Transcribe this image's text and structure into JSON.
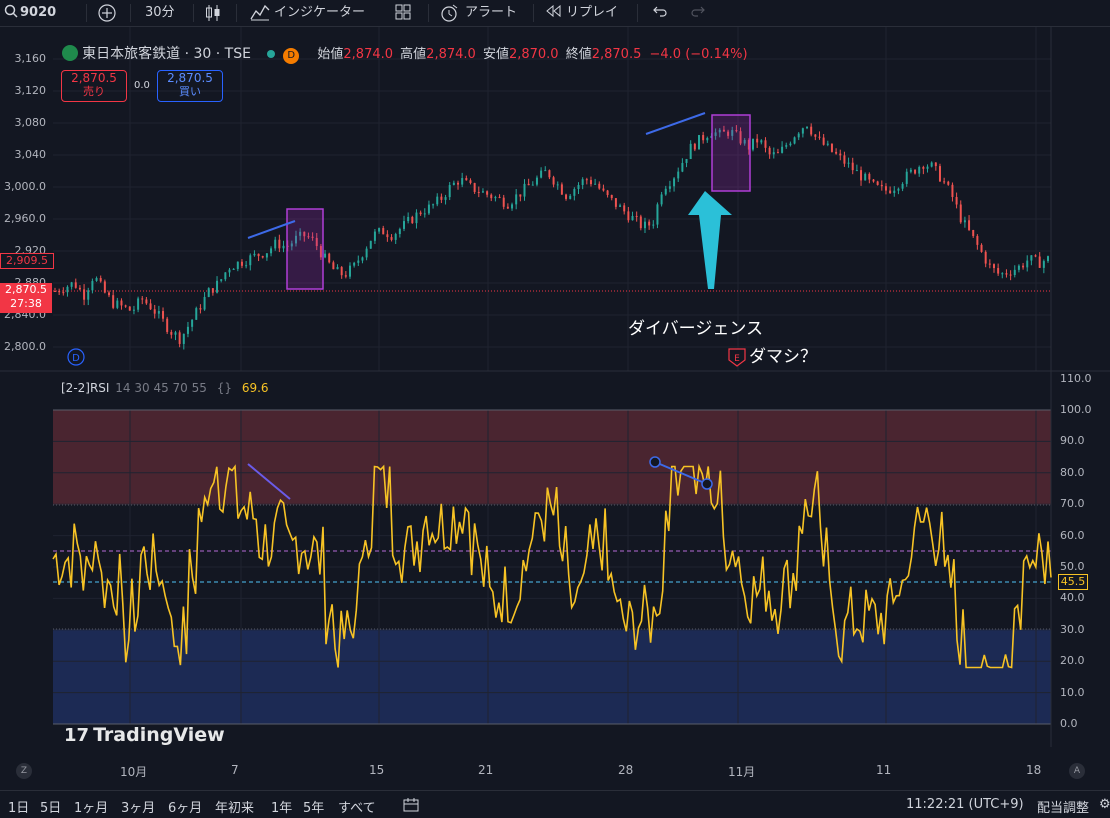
{
  "toolbar": {
    "symbol": "9020",
    "interval": "30分",
    "indicators": "インジケーター",
    "alert": "アラート",
    "replay": "リプレイ"
  },
  "legend": {
    "name": "東日本旅客鉄道 · 30 · TSE",
    "d_badge": "D",
    "open_label": "始値",
    "open": "2,874.0",
    "high_label": "高値",
    "high": "2,874.0",
    "low_label": "安値",
    "low": "2,870.0",
    "close_label": "終値",
    "close": "2,870.5",
    "change": "−4.0 (−0.14%)",
    "sell_price": "2,870.5",
    "sell_label": "売り",
    "spread": "0.0",
    "buy_price": "2,870.5",
    "buy_label": "買い"
  },
  "price_axis": {
    "ticks": [
      "3,160",
      "3,120",
      "3,080",
      "3,040",
      "3,000.0",
      "2,960.0",
      "2,920",
      "2,880",
      "2,840.0",
      "2,800.0"
    ],
    "mark_2909": "2,909.5",
    "current_price": "2,870.5",
    "countdown": "27:38"
  },
  "rsi": {
    "title": "[2-2]RSI",
    "params": "14 30 45 70 55",
    "value": "69.6",
    "last": "45.5",
    "ticks": [
      "110.0",
      "100.0",
      "90.0",
      "80.0",
      "70.0",
      "60.0",
      "50.0",
      "40.0",
      "30.0",
      "20.0",
      "10.0",
      "0.0"
    ]
  },
  "annotations": {
    "divergence": "ダイバージェンス",
    "fake": "ダマシ？",
    "e_marker": "E",
    "d_marker": "D"
  },
  "watermark": "TradingView",
  "dates": [
    "10月",
    "7",
    "15",
    "21",
    "28",
    "11月",
    "11",
    "18"
  ],
  "bottom": {
    "ranges": [
      "1日",
      "5日",
      "1ヶ月",
      "3ヶ月",
      "6ヶ月",
      "年初来",
      "1年",
      "5年",
      "すべて"
    ],
    "clock": "11:22:21 (UTC+9)",
    "adjust": "配当調整",
    "z": "Z",
    "a": "A"
  },
  "chart_data": {
    "type": "candlestick_with_rsi",
    "ylim": [
      2780,
      3180
    ],
    "rsi_ylim": [
      0,
      110
    ],
    "rsi_levels": {
      "overbought": 70,
      "oversold": 30,
      "mid_upper": 55,
      "mid_lower": 45
    },
    "colors": {
      "up": "#26a69a",
      "down": "#ef5350",
      "rsi": "#f7c325"
    },
    "close_series_approx": [
      2870,
      2875,
      2880,
      2865,
      2890,
      2870,
      2855,
      2850,
      2845,
      2860,
      2850,
      2835,
      2820,
      2810,
      2830,
      2850,
      2870,
      2880,
      2900,
      2905,
      2910,
      2915,
      2920,
      2930,
      2925,
      2935,
      2940,
      2930,
      2910,
      2895,
      2890,
      2900,
      2920,
      2940,
      2945,
      2940,
      2950,
      2960,
      2970,
      2975,
      2985,
      3000,
      3010,
      3000,
      2995,
      2990,
      2985,
      2980,
      2990,
      3000,
      3010,
      3020,
      3005,
      2990,
      3000,
      3010,
      3005,
      2990,
      2980,
      2970,
      2960,
      2950,
      2955,
      3000,
      3010,
      3030,
      3050,
      3060,
      3070,
      3065,
      3070,
      3060,
      3050,
      3060,
      3040,
      3040,
      3055,
      3070,
      3080,
      3060,
      3050,
      3040,
      3030,
      3020,
      3010,
      3000,
      2995,
      3000,
      3010,
      3020,
      3030,
      3025,
      3010,
      2990,
      2960,
      2940,
      2920,
      2900,
      2890,
      2895,
      2900,
      2910,
      2905,
      2910
    ]
  }
}
